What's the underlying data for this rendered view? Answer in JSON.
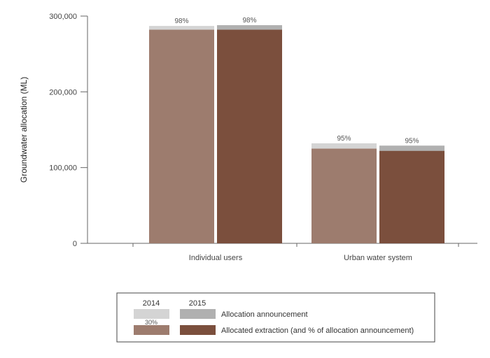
{
  "chart_data": {
    "type": "bar",
    "ylabel": "Groundwater allocation (ML)",
    "xlabel": "",
    "ylim": [
      0,
      300000
    ],
    "yticks": [
      0,
      100000,
      200000,
      300000
    ],
    "ytick_labels": [
      "0",
      "100,000",
      "200,000",
      "300,000"
    ],
    "grid": false,
    "categories": [
      "Individual users",
      "Urban water system"
    ],
    "series": [
      {
        "name": "Allocation announcement",
        "year": "2014",
        "values": [
          287000,
          132000
        ],
        "color": "#d4d4d4"
      },
      {
        "name": "Allocation announcement",
        "year": "2015",
        "values": [
          288000,
          129000
        ],
        "color": "#b0b0b0"
      },
      {
        "name": "Allocated extraction (and % of allocation announcement)",
        "year": "2014",
        "values": [
          282000,
          125000
        ],
        "color": "#9d7c6e"
      },
      {
        "name": "Allocated extraction (and % of allocation announcement)",
        "year": "2015",
        "values": [
          282000,
          122000
        ],
        "color": "#7b4f3d"
      }
    ],
    "bar_labels": [
      {
        "category": "Individual users",
        "year": "2014",
        "text": "98%"
      },
      {
        "category": "Individual users",
        "year": "2015",
        "text": "98%"
      },
      {
        "category": "Urban water system",
        "year": "2014",
        "text": "95%"
      },
      {
        "category": "Urban water system",
        "year": "2015",
        "text": "95%"
      }
    ],
    "legend": {
      "placement": "bottom",
      "years": [
        "2014",
        "2015"
      ],
      "rows": [
        {
          "label": "Allocation announcement",
          "colors": [
            "#d4d4d4",
            "#b0b0b0"
          ]
        },
        {
          "label": "Allocated extraction (and % of allocation announcement)",
          "colors": [
            "#9d7c6e",
            "#7b4f3d"
          ],
          "sample_label": "30%"
        }
      ]
    }
  }
}
